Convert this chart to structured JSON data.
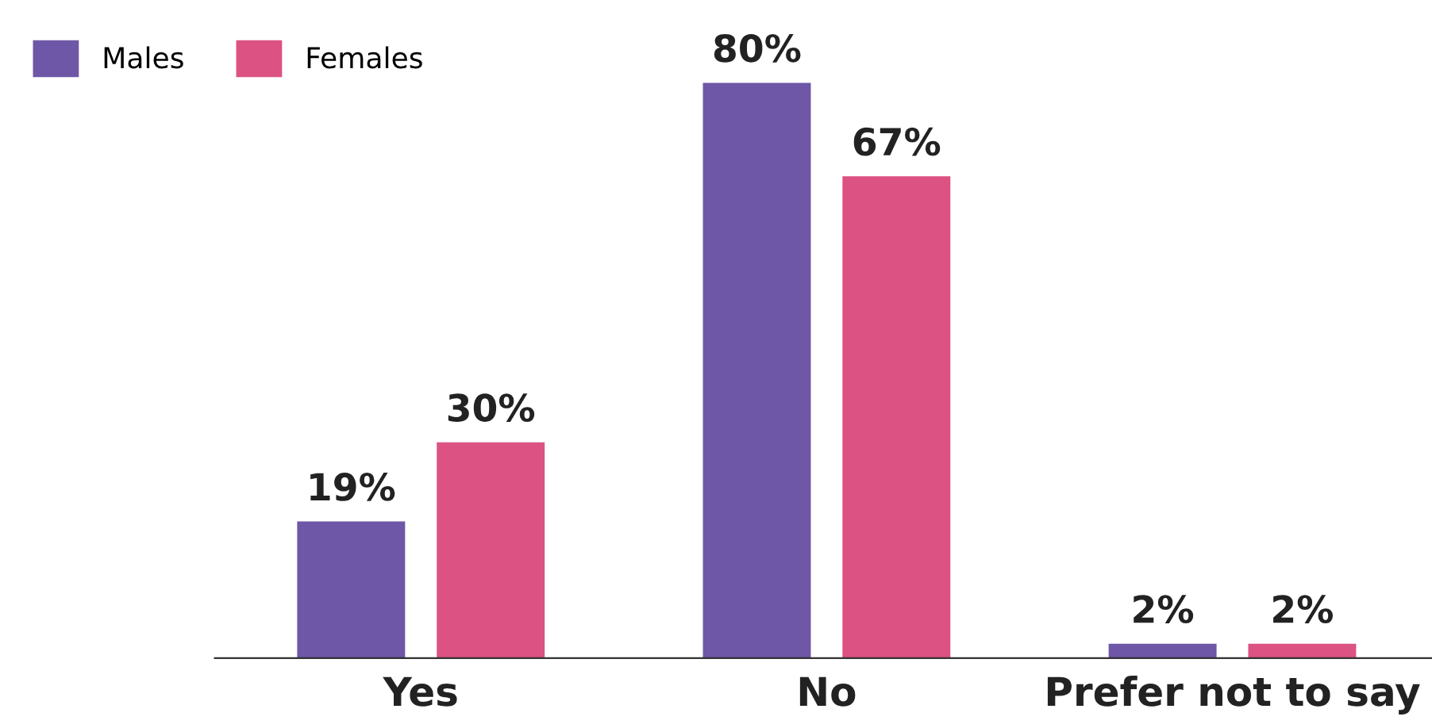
{
  "chart_data": {
    "type": "bar",
    "categories": [
      "Yes",
      "No",
      "Prefer not to say"
    ],
    "series": [
      {
        "name": "Males",
        "color": "#6e57a6",
        "values": [
          19,
          80,
          2
        ],
        "value_labels": [
          "19%",
          "80%",
          "2%"
        ]
      },
      {
        "name": "Females",
        "color": "#dc5283",
        "values": [
          30,
          67,
          2
        ],
        "value_labels": [
          "30%",
          "67%",
          "2%"
        ]
      }
    ],
    "tick_labels": "x",
    "legend": "top left",
    "grid": false
  }
}
